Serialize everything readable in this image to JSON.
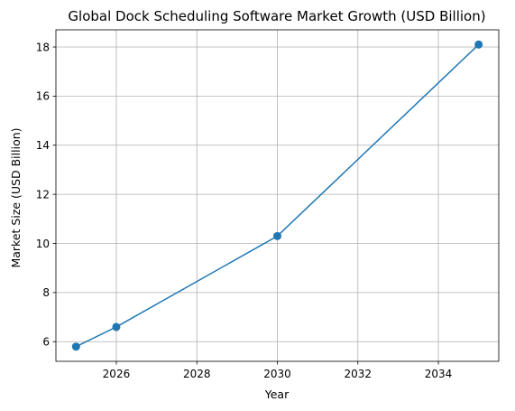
{
  "chart_data": {
    "type": "line",
    "title": "Global Dock Scheduling Software Market Growth (USD Billion)",
    "xlabel": "Year",
    "ylabel": "Market Size (USD Billion)",
    "x_ticks": [
      "2026",
      "2028",
      "2030",
      "2032",
      "2034"
    ],
    "y_ticks": [
      "6",
      "8",
      "10",
      "12",
      "14",
      "16",
      "18"
    ],
    "xlim": [
      2024.5,
      2035.5
    ],
    "ylim": [
      5.2,
      18.7
    ],
    "grid": true,
    "marker": "circle",
    "color": "#1f77b4",
    "series": [
      {
        "x": [
          2025,
          2026,
          2030,
          2035
        ],
        "values": [
          5.8,
          6.6,
          10.3,
          18.1
        ]
      }
    ]
  }
}
